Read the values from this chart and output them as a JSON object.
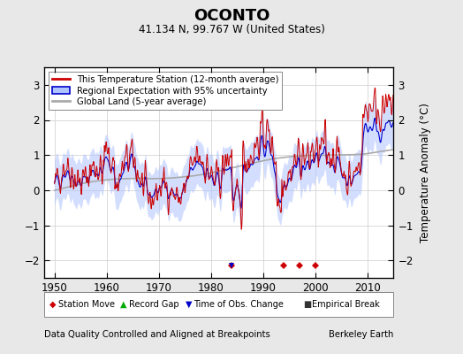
{
  "title": "OCONTO",
  "subtitle": "41.134 N, 99.767 W (United States)",
  "ylabel": "Temperature Anomaly (°C)",
  "xlabel_left": "Data Quality Controlled and Aligned at Breakpoints",
  "xlabel_right": "Berkeley Earth",
  "ylim": [
    -2.5,
    3.5
  ],
  "xlim": [
    1948,
    2015
  ],
  "yticks": [
    -2,
    -1,
    0,
    1,
    2,
    3
  ],
  "xticks": [
    1950,
    1960,
    1970,
    1980,
    1990,
    2000,
    2010
  ],
  "bg_color": "#e8e8e8",
  "plot_bg_color": "#ffffff",
  "grid_color": "#cccccc",
  "station_color": "#cc0000",
  "regional_color": "#0000cc",
  "uncertainty_color": "#b0c4ff",
  "global_color": "#aaaaaa",
  "station_move_color": "#cc0000",
  "record_gap_color": "#00aa00",
  "tobs_color": "#0000cc",
  "empirical_color": "#333333",
  "station_moves": [
    1984,
    1994,
    1997,
    2000
  ],
  "tobs_changes": [
    1984
  ],
  "empirical_breaks": [],
  "record_gaps": []
}
